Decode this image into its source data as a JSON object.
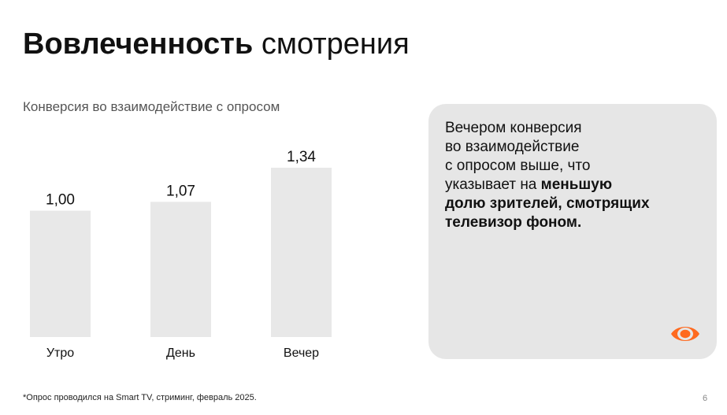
{
  "slide": {
    "title_bold": "Вовлеченность",
    "title_regular": "смотрения",
    "subtitle": "Конверсия во взаимодействие с опросом",
    "footnote": "*Опрос проводился на Smart TV, стриминг, февраль 2025.",
    "page_number": "6"
  },
  "card": {
    "line1": "Вечером конверсия",
    "line2": "во взаимодействие",
    "line3": "с опросом выше, что",
    "line4_regular": "указывает на ",
    "line4_bold": "меньшую",
    "line5_bold": "долю зрителей, смотрящих",
    "line6_bold": "телевизор фоном.",
    "icon": "eye-icon"
  },
  "chart_data": {
    "type": "bar",
    "categories": [
      "Утро",
      "День",
      "Вечер"
    ],
    "values": [
      1.0,
      1.07,
      1.34
    ],
    "value_labels": [
      "1,00",
      "1,07",
      "1,34"
    ],
    "reference_line": 1.0,
    "ylim": [
      0,
      1.34
    ],
    "xlabel": "",
    "ylabel": "",
    "grid": false,
    "bar_color": "#e8e8e8",
    "line_color": "#e8501e"
  },
  "colors": {
    "accent": "#ff6a1f",
    "card_bg": "#e6e6e6"
  }
}
